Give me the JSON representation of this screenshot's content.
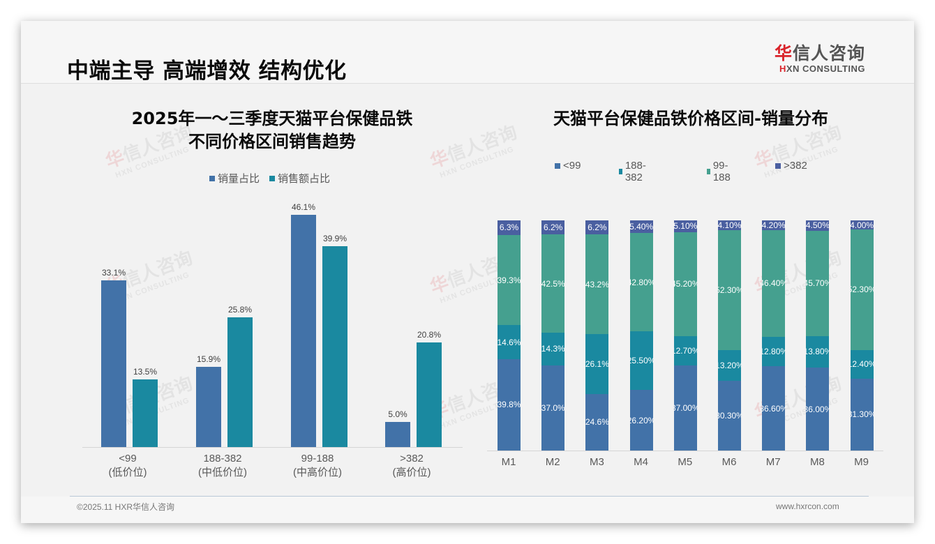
{
  "page": {
    "title": "中端主导 高端增效 结构优化",
    "logo": {
      "cn_red": "华",
      "cn_rest": "信人咨询",
      "en_red": "H",
      "en_rest": "XN CONSULTING"
    },
    "footer": {
      "left": "©2025.11 HXR华信人咨询",
      "right": "www.hxrcon.com"
    },
    "watermark": {
      "cn_red": "华",
      "cn_rest": "信人咨询",
      "en": "HXN CONSULTING"
    }
  },
  "colors": {
    "volume_share": "#4272a8",
    "sales_share": "#1a89a0",
    "lt99": "#4272a8",
    "r188_382": "#1a89a0",
    "r99_188": "#45a08f",
    "gt382": "#4a5fa0"
  },
  "chart_data": [
    {
      "type": "bar",
      "title": "2025年一～三季度天猫平台保健品铁 不同价格区间销售趋势",
      "title_lines": [
        "2025年一～三季度天猫平台保健品铁",
        "不同价格区间销售趋势"
      ],
      "categories": [
        "<99",
        "188-382",
        "99-188",
        ">382"
      ],
      "category_sublabels": [
        "(低价位)",
        "(中低价位)",
        "(中高价位)",
        "(高价位)"
      ],
      "series": [
        {
          "name": "销量占比",
          "values": [
            33.1,
            15.9,
            46.1,
            5.0
          ],
          "labels": [
            "33.1%",
            "15.9%",
            "46.1%",
            "5.0%"
          ]
        },
        {
          "name": "销售额占比",
          "values": [
            13.5,
            25.8,
            39.9,
            20.8
          ],
          "labels": [
            "13.5%",
            "25.8%",
            "39.9%",
            "20.8%"
          ]
        }
      ],
      "xlabel": "",
      "ylabel": "",
      "ylim": [
        0,
        50
      ],
      "grid": false,
      "legend_position": "top"
    },
    {
      "type": "bar",
      "stacked": true,
      "title": "天猫平台保健品铁价格区间-销量分布",
      "categories": [
        "M1",
        "M2",
        "M3",
        "M4",
        "M5",
        "M6",
        "M7",
        "M8",
        "M9"
      ],
      "series": [
        {
          "name": "<99",
          "values": [
            39.8,
            37.0,
            24.6,
            26.2,
            37.0,
            30.3,
            36.6,
            36.0,
            31.3
          ],
          "labels": [
            "39.8%",
            "37.0%",
            "24.6%",
            "26.20%",
            "37.00%",
            "30.30%",
            "36.60%",
            "36.00%",
            "31.30%"
          ]
        },
        {
          "name": "188-382",
          "values": [
            14.6,
            14.3,
            26.1,
            25.5,
            12.7,
            13.2,
            12.8,
            13.8,
            12.4
          ],
          "labels": [
            "14.6%",
            "14.3%",
            "26.1%",
            "25.50%",
            "12.70%",
            "13.20%",
            "12.80%",
            "13.80%",
            "12.40%"
          ]
        },
        {
          "name": "99-188",
          "values": [
            39.3,
            42.5,
            43.2,
            42.8,
            45.2,
            52.3,
            46.4,
            45.7,
            52.3
          ],
          "labels": [
            "39.3%",
            "42.5%",
            "43.2%",
            "42.80%",
            "45.20%",
            "52.30%",
            "46.40%",
            "45.70%",
            "52.30%"
          ]
        },
        {
          "name": ">382",
          "values": [
            6.3,
            6.2,
            6.2,
            5.4,
            5.1,
            4.1,
            4.2,
            4.5,
            4.0
          ],
          "labels": [
            "6.3%",
            "6.2%",
            "6.2%",
            "5.40%",
            "5.10%",
            "4.10%",
            "4.20%",
            "4.50%",
            "4.00%"
          ]
        }
      ],
      "legend": [
        "<99",
        "188-382",
        "99-188",
        ">382"
      ],
      "xlabel": "",
      "ylabel": "",
      "ylim": [
        0,
        100
      ],
      "grid": false,
      "legend_position": "top"
    }
  ]
}
